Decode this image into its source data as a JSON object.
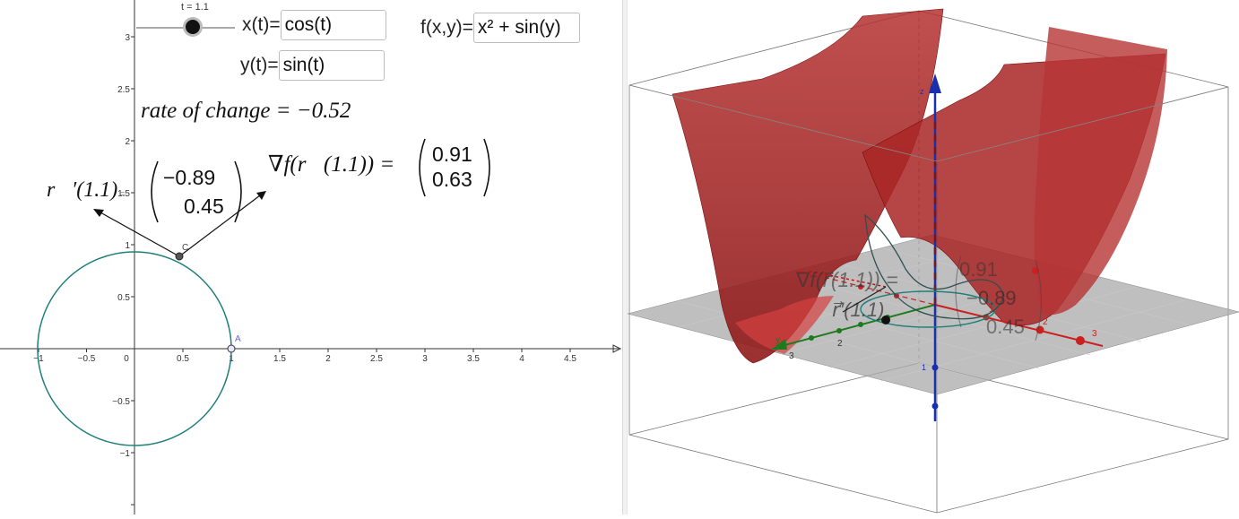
{
  "slider": {
    "label": "t = 1.1",
    "value": 1.1,
    "fraction": 0.5
  },
  "inputs": {
    "x": {
      "label": "x(t)=",
      "value": "cos(t)"
    },
    "y": {
      "label": "y(t)=",
      "value": "sin(t)"
    },
    "f": {
      "label": "f(x,y)=",
      "value": "x² + sin(y)"
    }
  },
  "math": {
    "rate": "rate of change = −0.52",
    "grad_lhs": "∇f(r⃗(1.1)) =",
    "grad_top": "0.91",
    "grad_bottom": "0.63",
    "deriv_lhs": "r⃗′(1.1)",
    "deriv_top": "−0.89",
    "deriv_bottom": "0.45"
  },
  "axes2d": {
    "x_ticks": [
      "−1",
      "−0.5",
      "0",
      "0.5",
      "1",
      "1.5",
      "2",
      "2.5",
      "3",
      "3.5",
      "4",
      "4.5"
    ],
    "y_ticks": [
      "3",
      "2.5",
      "2",
      "1.5",
      "1",
      "0.5",
      "−0.5",
      "−1"
    ],
    "point_c": "C",
    "point_a": "A"
  },
  "colors": {
    "curve": "#1f7f7a",
    "surface": "#b22222",
    "z_axis": "#1a2fb0",
    "x_axis": "#cc1f1f",
    "y_axis": "#1d7a1d",
    "plane": "#a9a9a9"
  },
  "view3d": {
    "x_ticks": [
      "1",
      "2",
      "3"
    ],
    "y_ticks": [
      "2",
      "3"
    ],
    "y_label": "y",
    "z_tick": "1",
    "z_label": "z"
  }
}
